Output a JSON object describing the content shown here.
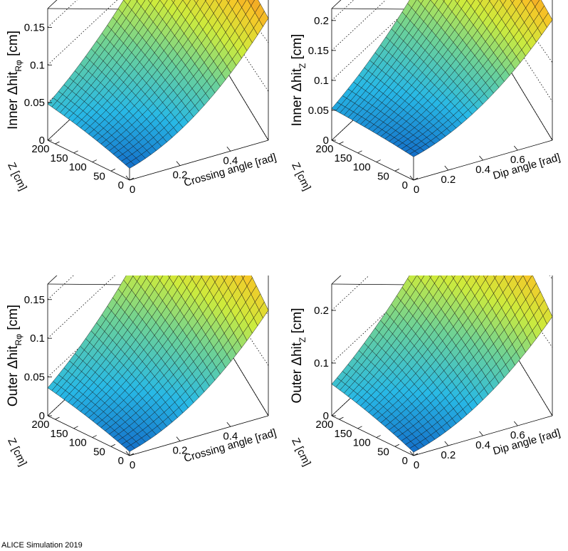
{
  "chart_data": [
    {
      "type": "surface",
      "x": {
        "label": "Crossing angle [rad]",
        "range": [
          0,
          0.55
        ],
        "ticks": [
          0,
          0.2,
          0.4
        ],
        "tick_labels": [
          "0",
          "0.2",
          "0.4"
        ]
      },
      "y": {
        "label": "Z [cm]",
        "range": [
          0,
          220
        ],
        "ticks": [
          0,
          50,
          100,
          150,
          200
        ],
        "tick_labels": [
          "0",
          "50",
          "100",
          "150",
          "200"
        ]
      },
      "z": {
        "label_prefix": "Inner  Δhit",
        "label_sub": "Rφ",
        "label_suffix": " [cm]",
        "range": [
          0,
          0.175
        ],
        "ticks": [
          0,
          0.05,
          0.1,
          0.15
        ],
        "tick_labels": [
          "0",
          "0.05",
          "0.1",
          "0.15"
        ]
      },
      "corners": {
        "x0_y0": 0.012,
        "x0_ymax": 0.048,
        "xmax_y0": 0.125,
        "xmax_ymax": 0.165
      },
      "color_range": [
        0.012,
        0.165
      ]
    },
    {
      "type": "surface",
      "x": {
        "label": "Dip angle [rad]",
        "range": [
          0,
          0.8
        ],
        "ticks": [
          0,
          0.2,
          0.4,
          0.6
        ],
        "tick_labels": [
          "0",
          "0.2",
          "0.4",
          "0.6"
        ]
      },
      "y": {
        "label": "Z [cm]",
        "range": [
          0,
          220
        ],
        "ticks": [
          0,
          50,
          100,
          150,
          200
        ],
        "tick_labels": [
          "0",
          "50",
          "100",
          "150",
          "200"
        ]
      },
      "z": {
        "label_prefix": "Inner  Δhit",
        "label_sub": "Z",
        "label_suffix": " [cm]",
        "range": [
          0,
          0.22
        ],
        "ticks": [
          0,
          0.05,
          0.1,
          0.15,
          0.2
        ],
        "tick_labels": [
          "0",
          "0.05",
          "0.1",
          "0.15",
          "0.2"
        ]
      },
      "corners": {
        "x0_y0": 0.03,
        "x0_ymax": 0.053,
        "xmax_y0": 0.155,
        "xmax_ymax": 0.205
      },
      "color_range": [
        0.03,
        0.205
      ]
    },
    {
      "type": "surface",
      "x": {
        "label": "Crossing angle [rad]",
        "range": [
          0,
          0.55
        ],
        "ticks": [
          0,
          0.2,
          0.4
        ],
        "tick_labels": [
          "0",
          "0.2",
          "0.4"
        ]
      },
      "y": {
        "label": "Z [cm]",
        "range": [
          0,
          220
        ],
        "ticks": [
          0,
          50,
          100,
          150,
          200
        ],
        "tick_labels": [
          "0",
          "50",
          "100",
          "150",
          "200"
        ]
      },
      "z": {
        "label_prefix": "Outer  Δhit",
        "label_sub": "Rφ",
        "label_suffix": " [cm]",
        "range": [
          0,
          0.17
        ],
        "ticks": [
          0,
          0.05,
          0.1,
          0.15
        ],
        "tick_labels": [
          "0",
          "0.05",
          "0.1",
          "0.15"
        ]
      },
      "corners": {
        "x0_y0": 0.004,
        "x0_ymax": 0.036,
        "xmax_y0": 0.105,
        "xmax_ymax": 0.163
      },
      "color_range": [
        0.004,
        0.163
      ]
    },
    {
      "type": "surface",
      "x": {
        "label": "Dip angle [rad]",
        "range": [
          0,
          0.8
        ],
        "ticks": [
          0,
          0.2,
          0.4,
          0.6
        ],
        "tick_labels": [
          "0",
          "0.2",
          "0.4",
          "0.6"
        ]
      },
      "y": {
        "label": "Z [cm]",
        "range": [
          0,
          220
        ],
        "ticks": [
          0,
          50,
          100,
          150,
          200
        ],
        "tick_labels": [
          "0",
          "50",
          "100",
          "150",
          "200"
        ]
      },
      "z": {
        "label_prefix": "Outer  Δhit",
        "label_sub": "Z",
        "label_suffix": " [cm]",
        "range": [
          0,
          0.25
        ],
        "ticks": [
          0,
          0.1,
          0.2
        ],
        "tick_labels": [
          "0",
          "0.1",
          "0.2"
        ]
      },
      "corners": {
        "x0_y0": 0.005,
        "x0_ymax": 0.06,
        "xmax_y0": 0.145,
        "xmax_ymax": 0.235
      },
      "color_range": [
        0.005,
        0.235
      ]
    }
  ],
  "footer_text": "ALICE Simulation 2019"
}
